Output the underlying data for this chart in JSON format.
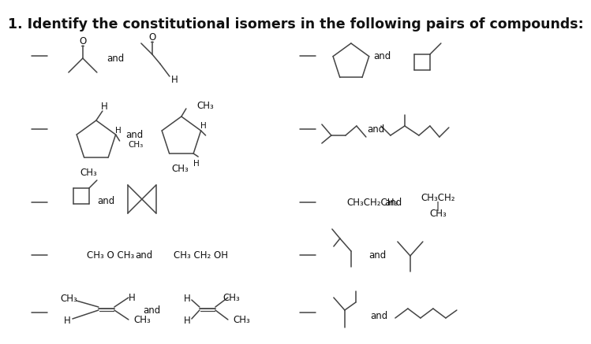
{
  "title": "1. Identify the constitutional isomers in the following pairs of compounds:",
  "bg_color": "#ffffff",
  "line_color": "#444444",
  "title_fontsize": 12.5,
  "small_fontsize": 8.5
}
